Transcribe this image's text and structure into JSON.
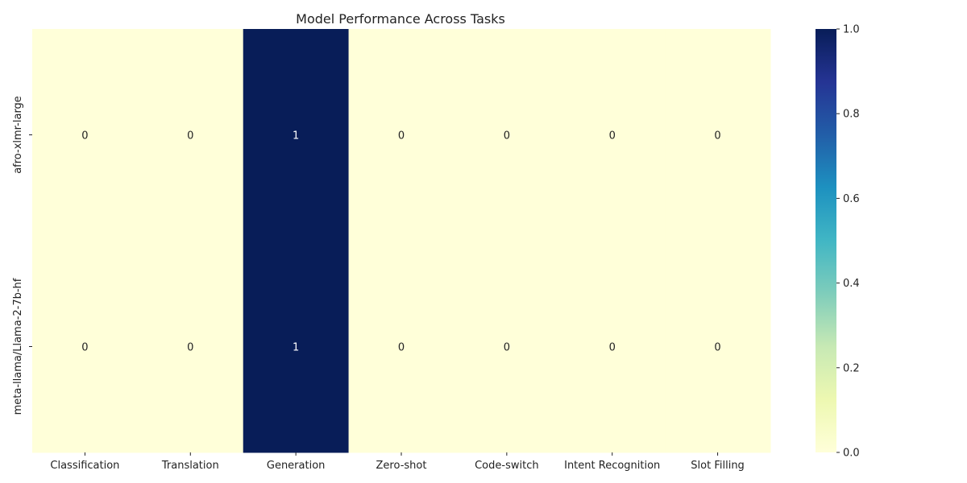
{
  "chart_data": {
    "type": "heatmap",
    "title": "Model Performance Across Tasks",
    "xlabel": "",
    "ylabel": "",
    "x_categories": [
      "Classification",
      "Translation",
      "Generation",
      "Zero-shot",
      "Code-switch",
      "Intent Recognition",
      "Slot Filling"
    ],
    "y_categories": [
      "afro-xlmr-large",
      "meta-llama/Llama-2-7b-hf"
    ],
    "values": [
      [
        0,
        0,
        1,
        0,
        0,
        0,
        0
      ],
      [
        0,
        0,
        1,
        0,
        0,
        0,
        0
      ]
    ],
    "annotations": [
      [
        "0",
        "0",
        "1",
        "0",
        "0",
        "0",
        "0"
      ],
      [
        "0",
        "0",
        "1",
        "0",
        "0",
        "0",
        "0"
      ]
    ],
    "colormap": "YlGnBu",
    "color_low": "#ffffd9",
    "color_high": "#081d58",
    "vmin": 0,
    "vmax": 1,
    "colorbar_ticks": [
      "0.0",
      "0.2",
      "0.4",
      "0.6",
      "0.8",
      "1.0"
    ],
    "grid": false
  }
}
